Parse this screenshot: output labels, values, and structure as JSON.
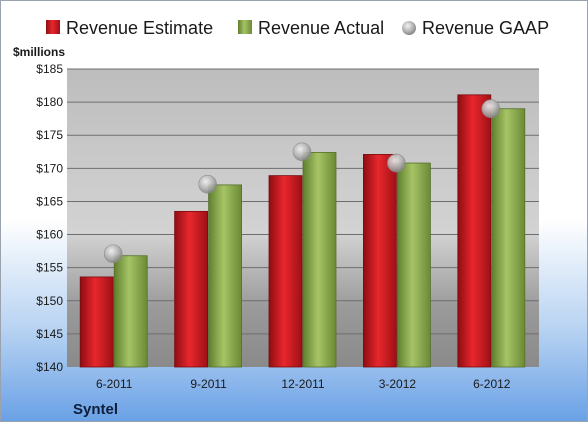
{
  "chart_data": {
    "type": "bar",
    "categories": [
      "6-2011",
      "9-2011",
      "12-2011",
      "3-2012",
      "6-2012"
    ],
    "series": [
      {
        "name": "Revenue Estimate",
        "kind": "bar",
        "values": [
          153.6,
          163.5,
          168.9,
          172.1,
          181.1
        ]
      },
      {
        "name": "Revenue Actual",
        "kind": "bar",
        "values": [
          156.8,
          167.5,
          172.4,
          170.8,
          179.0
        ]
      },
      {
        "name": "Revenue GAAP",
        "kind": "marker",
        "values": [
          157.1,
          167.6,
          172.5,
          170.8,
          179.0
        ]
      }
    ],
    "ylabel": "$millions",
    "ylim": [
      140,
      185
    ],
    "yticks": [
      140,
      145,
      150,
      155,
      160,
      165,
      170,
      175,
      180,
      185
    ],
    "ytick_labels": [
      "$140",
      "$145",
      "$150",
      "$155",
      "$160",
      "$165",
      "$170",
      "$175",
      "$180",
      "$185"
    ],
    "grid": true,
    "legend_position": "top",
    "company": "Syntel",
    "colors": {
      "estimate": "#c8161d",
      "actual": "#8aac4c",
      "gaap": "#b5b5b5"
    }
  }
}
